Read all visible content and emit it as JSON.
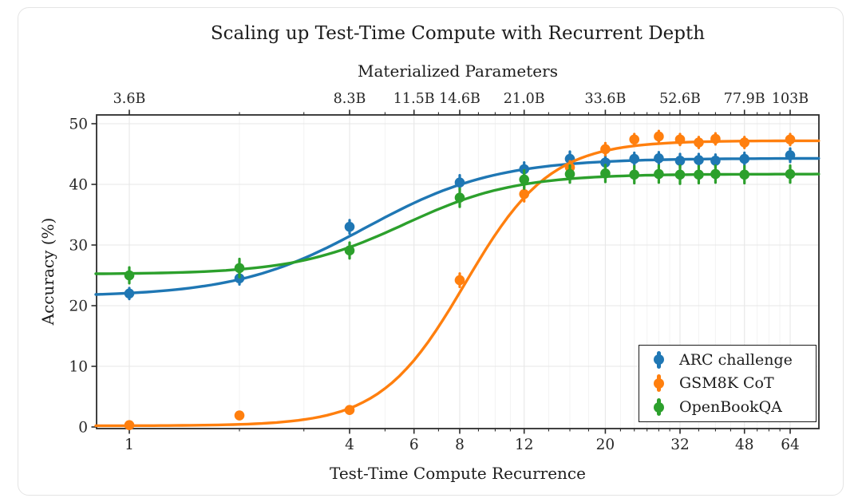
{
  "figure": {
    "background": "#ffffff",
    "accent_text_color": "#1c1c1c"
  },
  "chart_data": {
    "type": "line",
    "title": "Scaling up Test-Time Compute with Recurrent Depth",
    "xlabel": "Test-Time Compute Recurrence",
    "ylabel": "Accuracy (%)",
    "x_scale": "log2",
    "xlim": [
      0.81,
      76.6
    ],
    "ylim": [
      0,
      51.2
    ],
    "grid": true,
    "legend_position": "lower right",
    "top_axis": {
      "label": "Materialized Parameters",
      "tick_positions": [
        1,
        4,
        6,
        8,
        12,
        20,
        32,
        48,
        64
      ],
      "tick_labels": [
        "3.6B",
        "8.3B",
        "11.5B",
        "14.6B",
        "21.0B",
        "33.6B",
        "52.6B",
        "77.9B",
        "103B"
      ]
    },
    "x_ticks": {
      "positions": [
        1,
        4,
        6,
        8,
        12,
        20,
        32,
        48,
        64
      ],
      "labels": [
        "1",
        "4",
        "6",
        "8",
        "12",
        "20",
        "32",
        "48",
        "64"
      ]
    },
    "x_minor_ticks": [
      2,
      3,
      5,
      7,
      9,
      10,
      11,
      14,
      16,
      18,
      22,
      24,
      26,
      28,
      30,
      36,
      40,
      44,
      52,
      56,
      60
    ],
    "y_ticks": [
      0,
      10,
      20,
      30,
      40,
      50
    ],
    "x": [
      1,
      2,
      4,
      8,
      12,
      16,
      20,
      24,
      28,
      32,
      36,
      40,
      48,
      64
    ],
    "series": [
      {
        "name": "ARC challenge",
        "color": "#1f77b4",
        "values": [
          22.0,
          24.5,
          33.0,
          40.3,
          42.5,
          44.2,
          43.6,
          44.2,
          44.3,
          43.9,
          44.0,
          43.9,
          44.2,
          44.8
        ],
        "err": [
          0.9,
          1.0,
          1.1,
          1.2,
          1.1,
          1.2,
          1.1,
          1.0,
          1.0,
          1.1,
          1.0,
          1.0,
          1.0,
          1.1
        ],
        "fit": {
          "lo": 21.5,
          "hi": 44.3,
          "mid": 2.15,
          "k": 1.7
        }
      },
      {
        "name": "GSM8K CoT",
        "color": "#ff7f0e",
        "values": [
          0.3,
          1.9,
          2.8,
          24.2,
          38.4,
          42.8,
          45.8,
          47.4,
          47.9,
          47.4,
          46.9,
          47.5,
          46.9,
          47.4
        ],
        "err": [
          0.3,
          0.5,
          0.6,
          1.1,
          1.2,
          1.0,
          1.0,
          0.9,
          0.9,
          0.9,
          0.9,
          0.9,
          0.9,
          0.9
        ],
        "fit": {
          "lo": 0.2,
          "hi": 47.2,
          "mid": 3.05,
          "k": 2.6
        }
      },
      {
        "name": "OpenBookQA",
        "color": "#2ca02c",
        "values": [
          25.0,
          26.2,
          29.1,
          37.8,
          40.8,
          41.7,
          41.8,
          41.6,
          41.7,
          41.6,
          41.6,
          41.7,
          41.6,
          41.7
        ],
        "err": [
          1.3,
          1.5,
          1.3,
          1.5,
          1.5,
          1.4,
          1.4,
          1.4,
          1.4,
          1.5,
          1.4,
          1.4,
          1.4,
          1.4
        ],
        "fit": {
          "lo": 25.2,
          "hi": 41.7,
          "mid": 2.5,
          "k": 2.0
        }
      }
    ]
  }
}
